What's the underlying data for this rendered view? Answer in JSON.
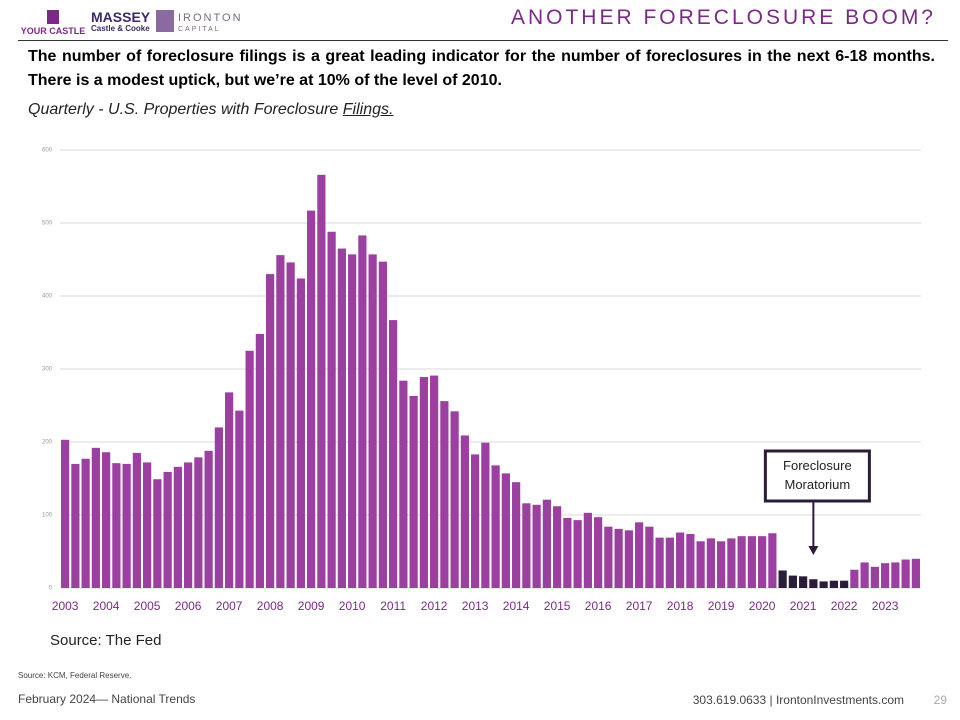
{
  "header": {
    "title": "ANOTHER FORECLOSURE BOOM?",
    "logos": [
      "YOUR CASTLE",
      "MASSEY",
      "Castle & Cooke",
      "IRONTON",
      "CAPITAL"
    ]
  },
  "body": "The number of foreclosure filings is a great leading indicator for the number of foreclosures in the next 6-18 months.  There is a modest uptick, but we’re at 10% of the level of 2010.",
  "subtitle": [
    "Quarterly - U.S. Properties with Foreclosure",
    "Filings."
  ],
  "chart_data": {
    "type": "bar",
    "categories": [
      "2003",
      null,
      null,
      null,
      "2004",
      null,
      null,
      null,
      "2005",
      null,
      null,
      null,
      "2006",
      null,
      null,
      null,
      "2007",
      null,
      null,
      null,
      "2008",
      null,
      null,
      null,
      "2009",
      null,
      null,
      null,
      "2010",
      null,
      null,
      null,
      "2011",
      null,
      null,
      null,
      "2012",
      null,
      null,
      null,
      "2013",
      null,
      null,
      null,
      "2014",
      null,
      null,
      null,
      "2015",
      null,
      null,
      null,
      "2016",
      null,
      null,
      null,
      "2017",
      null,
      null,
      null,
      "2018",
      null,
      null,
      null,
      "2019",
      null,
      null,
      null,
      "2020",
      null,
      null,
      null,
      "2021",
      null,
      null,
      null,
      "2022",
      null,
      null,
      null,
      "2023",
      null,
      null,
      null
    ],
    "values": [
      203,
      170,
      177,
      192,
      186,
      171,
      170,
      185,
      172,
      149,
      159,
      166,
      172,
      179,
      188,
      220,
      268,
      243,
      325,
      348,
      430,
      456,
      446,
      424,
      517,
      566,
      488,
      465,
      457,
      483,
      457,
      447,
      367,
      284,
      263,
      289,
      291,
      256,
      242,
      209,
      183,
      199,
      168,
      157,
      145,
      116,
      114,
      121,
      112,
      96,
      93,
      103,
      97,
      84,
      81,
      79,
      90,
      84,
      69,
      69,
      76,
      74,
      64,
      68,
      64,
      68,
      71,
      71,
      71,
      75,
      24,
      17,
      16,
      12,
      9,
      10,
      10,
      25,
      35,
      29,
      34,
      35,
      39,
      40
    ],
    "colors": [
      "#9b3fa0",
      "#9b3fa0",
      "#9b3fa0",
      "#9b3fa0",
      "#9b3fa0",
      "#9b3fa0",
      "#9b3fa0",
      "#9b3fa0",
      "#9b3fa0",
      "#9b3fa0",
      "#9b3fa0",
      "#9b3fa0",
      "#9b3fa0",
      "#9b3fa0",
      "#9b3fa0",
      "#9b3fa0",
      "#9b3fa0",
      "#9b3fa0",
      "#9b3fa0",
      "#9b3fa0",
      "#9b3fa0",
      "#9b3fa0",
      "#9b3fa0",
      "#9b3fa0",
      "#9b3fa0",
      "#9b3fa0",
      "#9b3fa0",
      "#9b3fa0",
      "#9b3fa0",
      "#9b3fa0",
      "#9b3fa0",
      "#9b3fa0",
      "#9b3fa0",
      "#9b3fa0",
      "#9b3fa0",
      "#9b3fa0",
      "#9b3fa0",
      "#9b3fa0",
      "#9b3fa0",
      "#9b3fa0",
      "#9b3fa0",
      "#9b3fa0",
      "#9b3fa0",
      "#9b3fa0",
      "#9b3fa0",
      "#9b3fa0",
      "#9b3fa0",
      "#9b3fa0",
      "#9b3fa0",
      "#9b3fa0",
      "#9b3fa0",
      "#9b3fa0",
      "#9b3fa0",
      "#9b3fa0",
      "#9b3fa0",
      "#9b3fa0",
      "#9b3fa0",
      "#9b3fa0",
      "#9b3fa0",
      "#9b3fa0",
      "#9b3fa0",
      "#9b3fa0",
      "#9b3fa0",
      "#9b3fa0",
      "#9b3fa0",
      "#9b3fa0",
      "#9b3fa0",
      "#9b3fa0",
      "#9b3fa0",
      "#9b3fa0",
      "#2b1d3a",
      "#2b1d3a",
      "#2b1d3a",
      "#2b1d3a",
      "#2b1d3a",
      "#2b1d3a",
      "#2b1d3a",
      "#9b3fa0",
      "#9b3fa0",
      "#9b3fa0",
      "#9b3fa0",
      "#9b3fa0",
      "#9b3fa0",
      "#9b3fa0"
    ],
    "ylim": [
      0,
      600
    ],
    "yticks": [
      0,
      100,
      200,
      300,
      400,
      500,
      600
    ],
    "grid": true,
    "annotation": "Foreclosure Moratorium",
    "source": "Source: The Fed"
  },
  "footer": {
    "source": "Source: KCM, Federal Reserve.",
    "date": "February 2024— National Trends",
    "contact": "303.619.0633 | IrontonInvestments.com",
    "page": "29"
  }
}
